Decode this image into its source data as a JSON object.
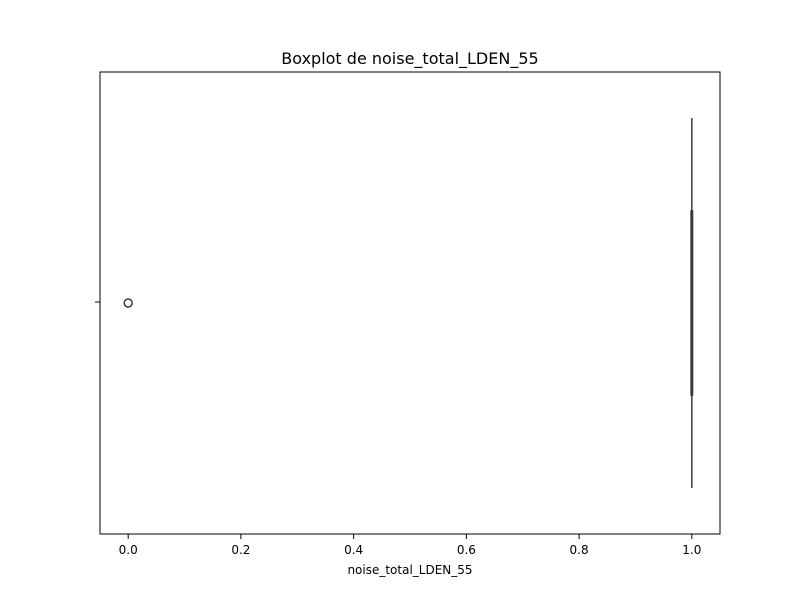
{
  "chart_data": {
    "type": "boxplot",
    "title": "Boxplot de noise_total_LDEN_55",
    "xlabel": "noise_total_LDEN_55",
    "ylabel": "",
    "xlim": [
      -0.05,
      1.05
    ],
    "x_ticks": [
      0.0,
      0.2,
      0.4,
      0.6,
      0.8,
      1.0
    ],
    "x_tick_labels": [
      "0.0",
      "0.2",
      "0.4",
      "0.6",
      "0.8",
      "1.0"
    ],
    "grid": false,
    "series": [
      {
        "q1": 1.0,
        "median": 1.0,
        "q3": 1.0,
        "whisker_low": 1.0,
        "whisker_high": 1.0,
        "outliers": [
          0.0
        ]
      }
    ],
    "box_color": "#3a3a3a",
    "outlier_color": "#3a3a3a"
  }
}
